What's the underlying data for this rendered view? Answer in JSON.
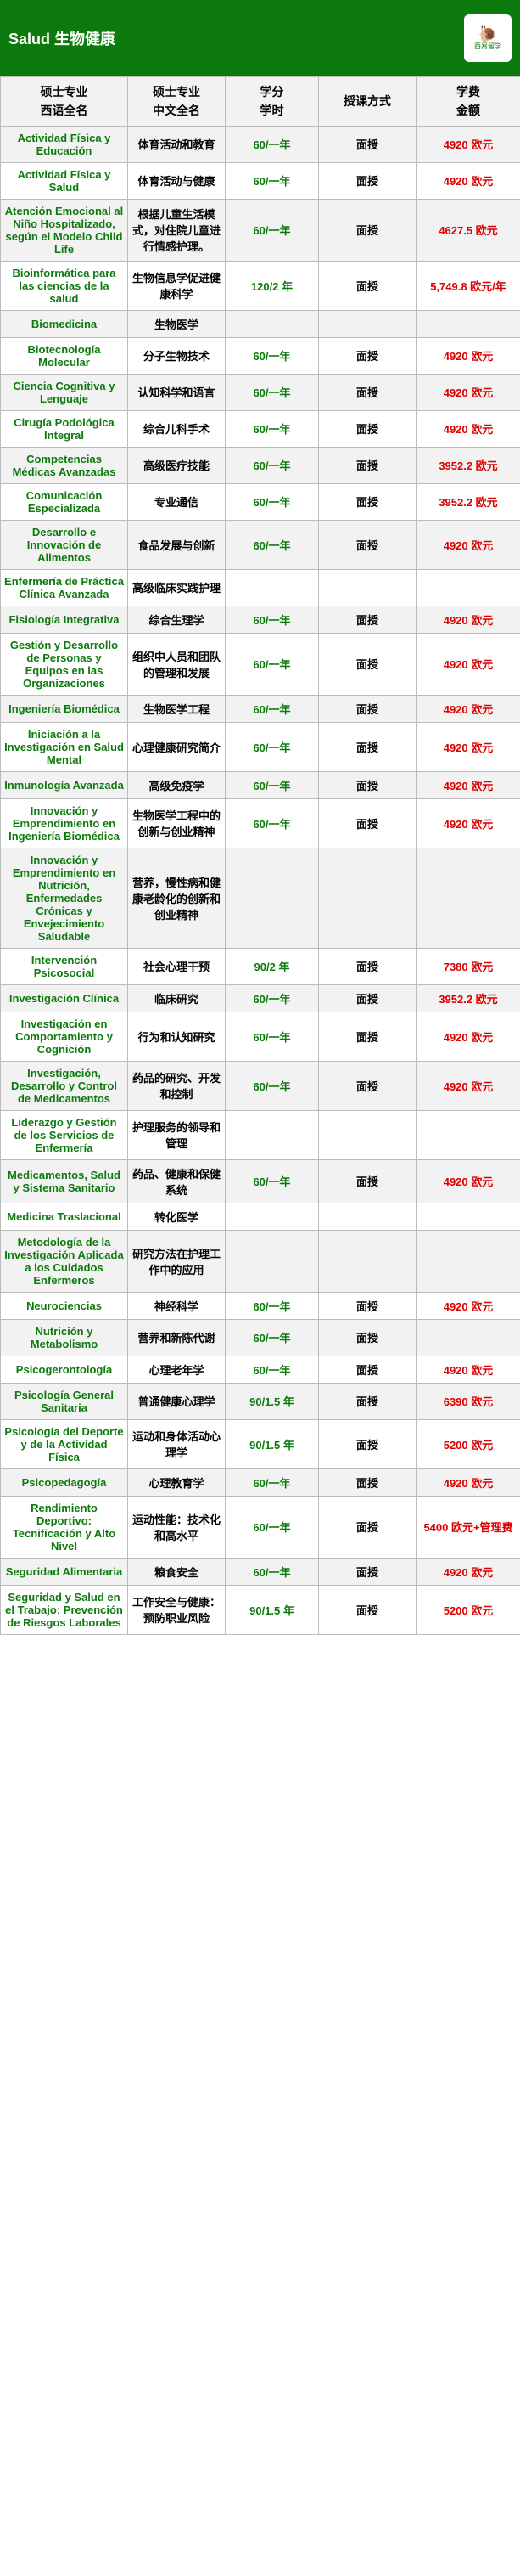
{
  "header": {
    "title": "Salud 生物健康",
    "logo_text": "西易留学"
  },
  "columns": {
    "c1_line1": "硕士专业",
    "c1_line2": "西语全名",
    "c2_line1": "硕士专业",
    "c2_line2": "中文全名",
    "c3_line1": "学分",
    "c3_line2": "学时",
    "c4": "授课方式",
    "c5_line1": "学费",
    "c5_line2": "金额"
  },
  "rows": [
    {
      "es": "Actividad Física y Educación",
      "cn": "体育活动和教育",
      "cr": "60/一年",
      "mode": "面授",
      "tu": "4920 欧元"
    },
    {
      "es": "Actividad Física y Salud",
      "cn": "体育活动与健康",
      "cr": "60/一年",
      "mode": "面授",
      "tu": "4920 欧元"
    },
    {
      "es": "Atención Emocional al Niño Hospitalizado, según el Modelo Child Life",
      "cn": "根据儿童生活模式，对住院儿童进行情感护理。",
      "cr": "60/一年",
      "mode": "面授",
      "tu": "4627.5 欧元"
    },
    {
      "es": "Bioinformática para las ciencias de la salud",
      "cn": "生物信息学促进健康科学",
      "cr": "120/2 年",
      "mode": "面授",
      "tu": "5,749.8 欧元/年"
    },
    {
      "es": "Biomedicina",
      "cn": "生物医学",
      "cr": "",
      "mode": "",
      "tu": ""
    },
    {
      "es": "Biotecnología Molecular",
      "cn": "分子生物技术",
      "cr": "60/一年",
      "mode": "面授",
      "tu": "4920 欧元"
    },
    {
      "es": "Ciencia Cognitiva y Lenguaje",
      "cn": "认知科学和语言",
      "cr": "60/一年",
      "mode": "面授",
      "tu": "4920 欧元"
    },
    {
      "es": "Cirugía Podológica Integral",
      "cn": "综合儿科手术",
      "cr": "60/一年",
      "mode": "面授",
      "tu": "4920 欧元"
    },
    {
      "es": "Competencias Médicas Avanzadas",
      "cn": "高级医疗技能",
      "cr": "60/一年",
      "mode": "面授",
      "tu": "3952.2 欧元"
    },
    {
      "es": "Comunicación Especializada",
      "cn": "专业通信",
      "cr": "60/一年",
      "mode": "面授",
      "tu": "3952.2 欧元"
    },
    {
      "es": "Desarrollo e Innovación de Alimentos",
      "cn": "食品发展与创新",
      "cr": "60/一年",
      "mode": "面授",
      "tu": "4920 欧元"
    },
    {
      "es": "Enfermería de Práctica Clínica Avanzada",
      "cn": "高级临床实践护理",
      "cr": "",
      "mode": "",
      "tu": ""
    },
    {
      "es": "Fisiología Integrativa",
      "cn": "综合生理学",
      "cr": "60/一年",
      "mode": "面授",
      "tu": "4920 欧元"
    },
    {
      "es": "Gestión y Desarrollo de Personas y Equipos en las Organizaciones",
      "cn": "组织中人员和团队的管理和发展",
      "cr": "60/一年",
      "mode": "面授",
      "tu": "4920 欧元"
    },
    {
      "es": "Ingeniería Biomédica",
      "cn": "生物医学工程",
      "cr": "60/一年",
      "mode": "面授",
      "tu": "4920 欧元"
    },
    {
      "es": "Iniciación a la Investigación en Salud Mental",
      "cn": "心理健康研究简介",
      "cr": "60/一年",
      "mode": "面授",
      "tu": "4920 欧元"
    },
    {
      "es": "Inmunología Avanzada",
      "cn": "高级免疫学",
      "cr": "60/一年",
      "mode": "面授",
      "tu": "4920 欧元"
    },
    {
      "es": "Innovación y Emprendimiento en Ingeniería Biomédica",
      "cn": "生物医学工程中的创新与创业精神",
      "cr": "60/一年",
      "mode": "面授",
      "tu": "4920 欧元"
    },
    {
      "es": "Innovación y Emprendimiento en Nutrición, Enfermedades Crónicas y Envejecimiento Saludable",
      "cn": "营养，慢性病和健康老龄化的创新和创业精神",
      "cr": "",
      "mode": "",
      "tu": ""
    },
    {
      "es": "Intervención Psicosocial",
      "cn": "社会心理干预",
      "cr": "90/2 年",
      "mode": "面授",
      "tu": "7380 欧元"
    },
    {
      "es": "Investigación Clínica",
      "cn": "临床研究",
      "cr": "60/一年",
      "mode": "面授",
      "tu": "3952.2 欧元"
    },
    {
      "es": "Investigación en Comportamiento y Cognición",
      "cn": "行为和认知研究",
      "cr": "60/一年",
      "mode": "面授",
      "tu": "4920 欧元"
    },
    {
      "es": "Investigación, Desarrollo y Control de Medicamentos",
      "cn": "药品的研究、开发和控制",
      "cr": "60/一年",
      "mode": "面授",
      "tu": "4920 欧元"
    },
    {
      "es": "Liderazgo y Gestión de los Servicios de Enfermería",
      "cn": "护理服务的领导和管理",
      "cr": "",
      "mode": "",
      "tu": ""
    },
    {
      "es": "Medicamentos, Salud y Sistema Sanitario",
      "cn": "药品、健康和保健系统",
      "cr": "60/一年",
      "mode": "面授",
      "tu": "4920 欧元"
    },
    {
      "es": "Medicina Traslacional",
      "cn": "转化医学",
      "cr": "",
      "mode": "",
      "tu": ""
    },
    {
      "es": "Metodología de la Investigación Aplicada a los Cuidados Enfermeros",
      "cn": "研究方法在护理工作中的应用",
      "cr": "",
      "mode": "",
      "tu": ""
    },
    {
      "es": "Neurociencias",
      "cn": "神经科学",
      "cr": "60/一年",
      "mode": "面授",
      "tu": "4920 欧元"
    },
    {
      "es": "Nutrición y Metabolismo",
      "cn": "营养和新陈代谢",
      "cr": "60/一年",
      "mode": "面授",
      "tu": ""
    },
    {
      "es": "Psicogerontología",
      "cn": "心理老年学",
      "cr": "60/一年",
      "mode": "面授",
      "tu": "4920 欧元"
    },
    {
      "es": "Psicología General Sanitaria",
      "cn": "普通健康心理学",
      "cr": "90/1.5 年",
      "mode": "面授",
      "tu": "6390 欧元"
    },
    {
      "es": "Psicología del Deporte y de la Actividad Física",
      "cn": "运动和身体活动心理学",
      "cr": "90/1.5 年",
      "mode": "面授",
      "tu": "5200 欧元"
    },
    {
      "es": "Psicopedagogía",
      "cn": "心理教育学",
      "cr": "60/一年",
      "mode": "面授",
      "tu": "4920 欧元"
    },
    {
      "es": "Rendimiento Deportivo: Tecnificación y Alto Nivel",
      "cn": "运动性能：技术化和高水平",
      "cr": "60/一年",
      "mode": "面授",
      "tu": "5400 欧元+管理费"
    },
    {
      "es": "Seguridad Alimentaria",
      "cn": "粮食安全",
      "cr": "60/一年",
      "mode": "面授",
      "tu": "4920 欧元"
    },
    {
      "es": "Seguridad y Salud en el Trabajo: Prevención de Riesgos Laborales",
      "cn": "工作安全与健康：预防职业风险",
      "cr": "90/1.5 年",
      "mode": "面授",
      "tu": "5200 欧元"
    }
  ]
}
